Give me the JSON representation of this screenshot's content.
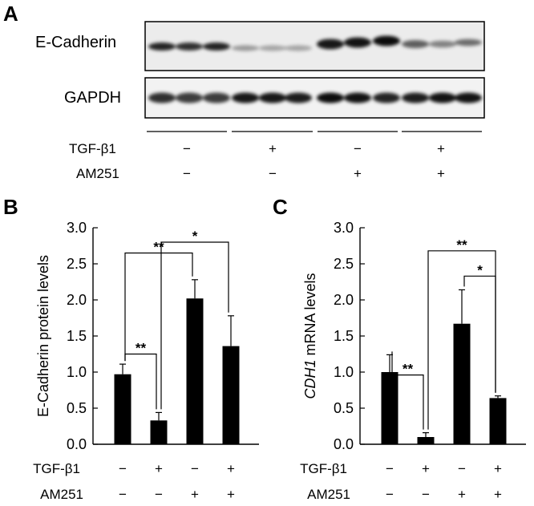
{
  "panel_a": {
    "letter": "A",
    "blots": [
      {
        "label": "E-Cadherin"
      },
      {
        "label": "GAPDH"
      }
    ],
    "conditions": {
      "tgf_label": "TGF-β1",
      "am_label": "AM251",
      "tgf": [
        "−",
        "+",
        "−",
        "+"
      ],
      "am": [
        "−",
        "−",
        "+",
        "+"
      ]
    }
  },
  "chart_data": [
    {
      "letter": "B",
      "type": "bar",
      "title": "",
      "xlabel": "",
      "ylabel": "E-Cadherin protein levels",
      "ylim": [
        0,
        3.0
      ],
      "yticks": [
        "0.0",
        "0.5",
        "1.0",
        "1.5",
        "2.0",
        "2.5",
        "3.0"
      ],
      "categories": [
        "TGF-β1 − / AM251 −",
        "TGF-β1 + / AM251 −",
        "TGF-β1 − / AM251 +",
        "TGF-β1 + / AM251 +"
      ],
      "values": [
        0.97,
        0.33,
        2.02,
        1.36
      ],
      "errors": [
        0.14,
        0.11,
        0.26,
        0.42
      ],
      "row_labels": [
        "TGF-β1",
        "AM251"
      ],
      "tgf": [
        "−",
        "+",
        "−",
        "+"
      ],
      "am": [
        "−",
        "−",
        "+",
        "+"
      ],
      "significance": [
        {
          "from": 0,
          "to": 1,
          "label": "**"
        },
        {
          "from": 0,
          "to": 2,
          "label": "**"
        },
        {
          "from": 1,
          "to": 3,
          "label": "*"
        }
      ],
      "color": "#000000"
    },
    {
      "letter": "C",
      "type": "bar",
      "title": "",
      "xlabel": "",
      "ylabel": "CDH1 mRNA levels",
      "ylabel_italic": "CDH1",
      "ylabel_rest": " mRNA levels",
      "ylim": [
        0,
        3.0
      ],
      "yticks": [
        "0.0",
        "0.5",
        "1.0",
        "1.5",
        "2.0",
        "2.5",
        "3.0"
      ],
      "categories": [
        "TGF-β1 − / AM251 −",
        "TGF-β1 + / AM251 −",
        "TGF-β1 − / AM251 +",
        "TGF-β1 + / AM251 +"
      ],
      "values": [
        1.0,
        0.1,
        1.67,
        0.64
      ],
      "errors": [
        0.24,
        0.06,
        0.47,
        0.03
      ],
      "row_labels": [
        "TGF-β1",
        "AM251"
      ],
      "tgf": [
        "−",
        "+",
        "−",
        "+"
      ],
      "am": [
        "−",
        "−",
        "+",
        "+"
      ],
      "significance": [
        {
          "from": 0,
          "to": 1,
          "label": "**"
        },
        {
          "from": 2,
          "to": 3,
          "label": "*"
        },
        {
          "from": 1,
          "to": 3,
          "label": "**"
        }
      ],
      "color": "#000000"
    }
  ]
}
